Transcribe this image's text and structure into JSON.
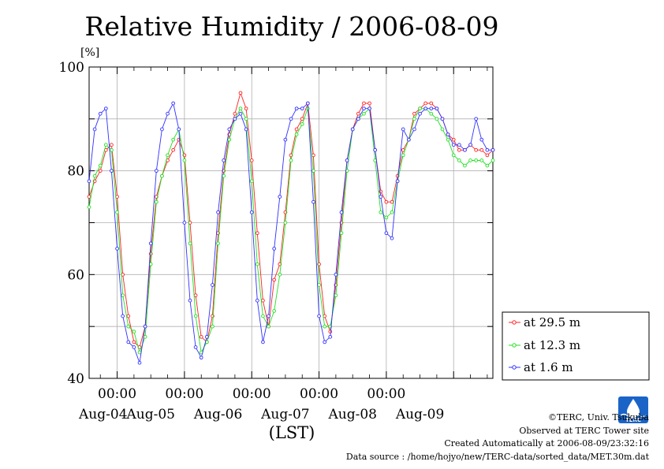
{
  "chart_data": {
    "type": "line",
    "title": "Relative Humidity / 2006-08-09",
    "ylabel_unit": "[%]",
    "xlabel": "(LST)",
    "ylim": [
      40,
      100
    ],
    "y_ticks": [
      "40",
      "60",
      "80",
      "100"
    ],
    "x_tick_time_labels": [
      "00:00",
      "00:00",
      "00:00",
      "00:00",
      "00:00"
    ],
    "x_date_labels": [
      "Aug-04",
      "Aug-05",
      "Aug-06",
      "Aug-07",
      "Aug-08",
      "Aug-09"
    ],
    "grid": true,
    "legend_position": "right",
    "x_unit": "hours since Aug-04 00:00 (LST)",
    "xlim": [
      -10,
      134
    ],
    "series": [
      {
        "name": "at 29.5 m",
        "color": "#ff2020",
        "x": [
          -10,
          -8,
          -6,
          -4,
          -2,
          0,
          2,
          4,
          6,
          8,
          10,
          12,
          14,
          16,
          18,
          20,
          22,
          24,
          26,
          28,
          30,
          32,
          34,
          36,
          38,
          40,
          42,
          44,
          46,
          48,
          50,
          52,
          54,
          56,
          58,
          60,
          62,
          64,
          66,
          68,
          70,
          72,
          74,
          76,
          78,
          80,
          82,
          84,
          86,
          88,
          90,
          92,
          94,
          96,
          98,
          100,
          102,
          104,
          106,
          108,
          110,
          112,
          114,
          116,
          118,
          120,
          122,
          124,
          126,
          128,
          130,
          132,
          134
        ],
        "values": [
          75,
          78,
          80,
          84,
          85,
          75,
          60,
          52,
          47,
          46,
          50,
          64,
          75,
          79,
          82,
          84,
          86,
          83,
          70,
          56,
          48,
          47,
          52,
          68,
          80,
          87,
          91,
          95,
          92,
          82,
          68,
          55,
          50,
          59,
          62,
          72,
          83,
          88,
          90,
          93,
          83,
          62,
          52,
          49,
          58,
          70,
          82,
          88,
          91,
          93,
          93,
          84,
          76,
          74,
          74,
          79,
          84,
          86,
          91,
          92,
          93,
          93,
          92,
          90,
          87,
          86,
          84,
          84,
          85,
          84,
          84,
          83,
          84
        ]
      },
      {
        "name": "at 12.3 m",
        "color": "#20e020",
        "x": [
          -10,
          -8,
          -6,
          -4,
          -2,
          0,
          2,
          4,
          6,
          8,
          10,
          12,
          14,
          16,
          18,
          20,
          22,
          24,
          26,
          28,
          30,
          32,
          34,
          36,
          38,
          40,
          42,
          44,
          46,
          48,
          50,
          52,
          54,
          56,
          58,
          60,
          62,
          64,
          66,
          68,
          70,
          72,
          74,
          76,
          78,
          80,
          82,
          84,
          86,
          88,
          90,
          92,
          94,
          96,
          98,
          100,
          102,
          104,
          106,
          108,
          110,
          112,
          114,
          116,
          118,
          120,
          122,
          124,
          126,
          128,
          130,
          132,
          134
        ],
        "values": [
          73,
          79,
          81,
          85,
          84,
          72,
          56,
          50,
          49,
          45,
          48,
          62,
          74,
          79,
          83,
          86,
          88,
          82,
          66,
          52,
          45,
          47,
          50,
          66,
          79,
          86,
          90,
          92,
          90,
          78,
          62,
          52,
          50,
          53,
          60,
          70,
          82,
          87,
          89,
          92,
          80,
          58,
          50,
          50,
          56,
          68,
          80,
          88,
          90,
          91,
          92,
          82,
          72,
          71,
          72,
          78,
          83,
          86,
          90,
          92,
          92,
          91,
          90,
          88,
          86,
          83,
          82,
          81,
          82,
          82,
          82,
          81,
          82
        ]
      },
      {
        "name": "at 1.6 m",
        "color": "#3030ff",
        "x": [
          -10,
          -8,
          -6,
          -4,
          -2,
          0,
          2,
          4,
          6,
          8,
          10,
          12,
          14,
          16,
          18,
          20,
          22,
          24,
          26,
          28,
          30,
          32,
          34,
          36,
          38,
          40,
          42,
          44,
          46,
          48,
          50,
          52,
          54,
          56,
          58,
          60,
          62,
          64,
          66,
          68,
          70,
          72,
          74,
          76,
          78,
          80,
          82,
          84,
          86,
          88,
          90,
          92,
          94,
          96,
          98,
          100,
          102,
          104,
          106,
          108,
          110,
          112,
          114,
          116,
          118,
          120,
          122,
          124,
          126,
          128,
          130,
          132,
          134
        ],
        "values": [
          78,
          88,
          91,
          92,
          80,
          65,
          52,
          47,
          46,
          43,
          50,
          66,
          80,
          88,
          91,
          93,
          88,
          70,
          55,
          46,
          44,
          48,
          58,
          72,
          82,
          88,
          90,
          91,
          88,
          72,
          55,
          47,
          52,
          65,
          75,
          86,
          90,
          92,
          92,
          93,
          74,
          52,
          47,
          48,
          60,
          72,
          82,
          88,
          90,
          92,
          92,
          84,
          75,
          68,
          67,
          78,
          88,
          86,
          88,
          91,
          92,
          92,
          92,
          90,
          87,
          85,
          85,
          84,
          85,
          90,
          86,
          84,
          84
        ]
      }
    ]
  },
  "footer": {
    "copyright": "©TERC, Univ. Tsukuba",
    "observed": "Observed at TERC Tower site",
    "created": "Created Automatically at 2006-08-09/23:32:16",
    "source": "Data source : /home/hojyo/new/TERC-data/sorted_data/MET.30m.dat"
  },
  "logo": {
    "text": "TERC",
    "color": "#1a64c8"
  }
}
